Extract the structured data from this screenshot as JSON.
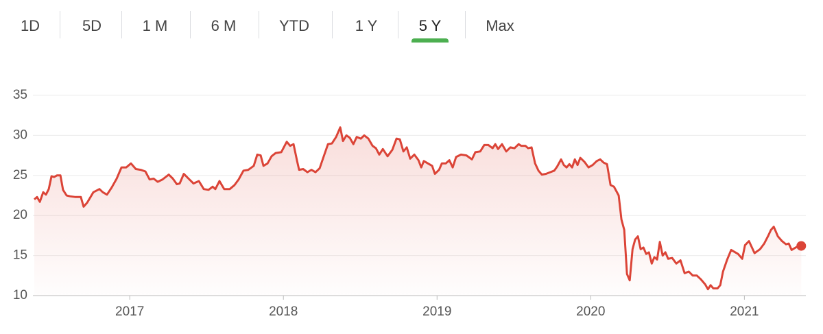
{
  "tabs": [
    "1D",
    "5D",
    "1 M",
    "6 M",
    "YTD",
    "1 Y",
    "5 Y",
    "Max"
  ],
  "selected_tab": 6,
  "chart_data": {
    "type": "line",
    "color": "#db4437",
    "grid": true,
    "end_marker": true,
    "xlim": [
      2016.37,
      2021.4
    ],
    "xticks": [
      2017,
      2018,
      2019,
      2020,
      2021
    ],
    "ylim": [
      10,
      35
    ],
    "yticks": [
      10,
      15,
      20,
      25,
      30,
      35
    ],
    "x": [
      2016.379,
      2016.397,
      2016.415,
      2016.437,
      2016.455,
      2016.473,
      2016.491,
      2016.508,
      2016.526,
      2016.549,
      2016.566,
      2016.589,
      2016.611,
      2016.647,
      2016.682,
      2016.7,
      2016.723,
      2016.763,
      2016.803,
      2016.825,
      2016.852,
      2016.883,
      2016.915,
      2016.946,
      2016.977,
      2017.008,
      2017.04,
      2017.071,
      2017.102,
      2017.129,
      2017.156,
      2017.182,
      2017.214,
      2017.254,
      2017.281,
      2017.307,
      2017.325,
      2017.352,
      2017.383,
      2017.415,
      2017.45,
      2017.482,
      2017.513,
      2017.54,
      2017.557,
      2017.584,
      2017.615,
      2017.651,
      2017.682,
      2017.709,
      2017.74,
      2017.772,
      2017.807,
      2017.83,
      2017.852,
      2017.87,
      2017.897,
      2017.923,
      2017.95,
      2017.986,
      2018.022,
      2018.044,
      2018.066,
      2018.089,
      2018.102,
      2018.129,
      2018.156,
      2018.182,
      2018.209,
      2018.236,
      2018.263,
      2018.29,
      2018.316,
      2018.343,
      2018.37,
      2018.388,
      2018.41,
      2018.432,
      2018.455,
      2018.477,
      2018.504,
      2018.526,
      2018.553,
      2018.58,
      2018.602,
      2018.624,
      2018.647,
      2018.678,
      2018.709,
      2018.736,
      2018.758,
      2018.781,
      2018.803,
      2018.825,
      2018.852,
      2018.879,
      2018.897,
      2018.914,
      2018.941,
      2018.968,
      2018.986,
      2019.013,
      2019.031,
      2019.057,
      2019.08,
      2019.102,
      2019.124,
      2019.156,
      2019.191,
      2019.227,
      2019.249,
      2019.281,
      2019.307,
      2019.334,
      2019.361,
      2019.379,
      2019.397,
      2019.423,
      2019.45,
      2019.477,
      2019.504,
      2019.531,
      2019.548,
      2019.575,
      2019.593,
      2019.615,
      2019.638,
      2019.66,
      2019.682,
      2019.709,
      2019.736,
      2019.763,
      2019.781,
      2019.807,
      2019.825,
      2019.843,
      2019.861,
      2019.879,
      2019.897,
      2019.914,
      2019.932,
      2019.959,
      2019.986,
      2020.013,
      2020.039,
      2020.062,
      2020.084,
      2020.106,
      2020.129,
      2020.151,
      2020.182,
      2020.2,
      2020.218,
      2020.236,
      2020.254,
      2020.272,
      2020.289,
      2020.307,
      2020.325,
      2020.343,
      2020.361,
      2020.379,
      2020.397,
      2020.414,
      2020.432,
      2020.45,
      2020.468,
      2020.486,
      2020.504,
      2020.53,
      2020.557,
      2020.584,
      2020.611,
      2020.638,
      2020.664,
      2020.691,
      2020.718,
      2020.745,
      2020.763,
      2020.78,
      2020.798,
      2020.825,
      2020.843,
      2020.861,
      2020.888,
      2020.914,
      2020.932,
      2020.959,
      2020.986,
      2021.004,
      2021.03,
      2021.066,
      2021.102,
      2021.129,
      2021.156,
      2021.173,
      2021.191,
      2021.218,
      2021.245,
      2021.271,
      2021.289,
      2021.307,
      2021.334,
      2021.352,
      2021.37
    ],
    "values": [
      22.0,
      22.3,
      21.7,
      22.9,
      22.6,
      23.3,
      24.9,
      24.8,
      25.0,
      25.0,
      23.2,
      22.5,
      22.4,
      22.3,
      22.3,
      21.1,
      21.6,
      22.9,
      23.3,
      22.9,
      22.6,
      23.5,
      24.6,
      26.0,
      26.0,
      26.5,
      25.8,
      25.7,
      25.5,
      24.5,
      24.6,
      24.2,
      24.5,
      25.1,
      24.6,
      23.9,
      24.0,
      25.2,
      24.6,
      24.0,
      24.3,
      23.3,
      23.2,
      23.6,
      23.3,
      24.3,
      23.3,
      23.3,
      23.8,
      24.5,
      25.6,
      25.7,
      26.2,
      27.6,
      27.5,
      26.2,
      26.5,
      27.4,
      27.8,
      27.9,
      29.2,
      28.7,
      28.9,
      26.8,
      25.7,
      25.8,
      25.4,
      25.7,
      25.4,
      25.9,
      27.4,
      28.9,
      29.0,
      29.8,
      31.0,
      29.3,
      30.0,
      29.7,
      28.9,
      29.8,
      29.6,
      30.0,
      29.6,
      28.7,
      28.4,
      27.6,
      28.3,
      27.4,
      28.2,
      29.6,
      29.5,
      28.0,
      28.5,
      27.1,
      27.6,
      26.9,
      26.0,
      26.8,
      26.5,
      26.2,
      25.2,
      25.7,
      26.5,
      26.5,
      26.9,
      26.0,
      27.3,
      27.6,
      27.5,
      27.0,
      27.9,
      28.0,
      28.8,
      28.8,
      28.4,
      28.9,
      28.3,
      28.9,
      28.0,
      28.5,
      28.4,
      28.9,
      28.7,
      28.7,
      28.4,
      28.5,
      26.5,
      25.6,
      25.1,
      25.2,
      25.4,
      25.6,
      26.1,
      27.0,
      26.3,
      26.0,
      26.4,
      26.0,
      27.0,
      26.3,
      27.2,
      26.7,
      26.0,
      26.3,
      26.8,
      27.0,
      26.6,
      26.4,
      23.8,
      23.6,
      22.5,
      19.5,
      18.2,
      12.7,
      11.9,
      15.8,
      17.0,
      17.4,
      15.8,
      16.0,
      15.2,
      15.4,
      14.0,
      14.8,
      14.5,
      16.7,
      15.0,
      15.4,
      14.6,
      14.7,
      14.0,
      14.4,
      12.8,
      13.0,
      12.5,
      12.5,
      12.0,
      11.4,
      10.8,
      11.3,
      10.9,
      10.9,
      11.3,
      13.0,
      14.5,
      15.7,
      15.5,
      15.2,
      14.6,
      16.3,
      16.8,
      15.3,
      15.8,
      16.5,
      17.5,
      18.2,
      18.6,
      17.4,
      16.8,
      16.4,
      16.5,
      15.7,
      16.0,
      16.2,
      16.2
    ]
  }
}
